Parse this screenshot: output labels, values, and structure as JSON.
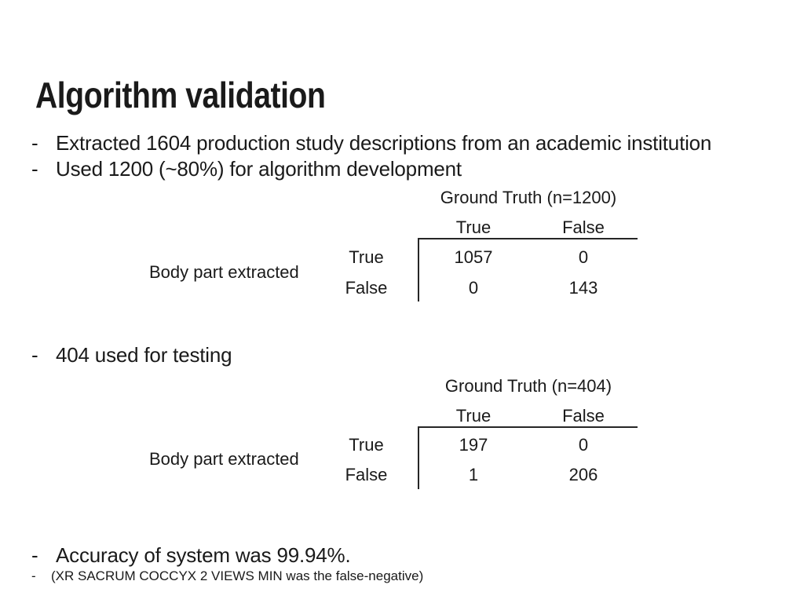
{
  "slide": {
    "title": "Algorithm validation",
    "bullet_marker": "-",
    "bullets": [
      {
        "text": "Extracted 1604 production study descriptions from an academic institution"
      },
      {
        "text": "Used 1200 (~80%) for algorithm development"
      },
      {
        "text": "404 used for testing"
      },
      {
        "text": "Accuracy of system was 99.94%."
      },
      {
        "text": "(XR SACRUM COCCYX 2 VIEWS MIN was the false-negative)"
      }
    ],
    "colors": {
      "text": "#1a1a1a",
      "rule_lines": "#262626",
      "background": "#ffffff"
    }
  },
  "tables": [
    {
      "header": "Ground Truth (n=1200)",
      "col_headers": [
        "True",
        "False"
      ],
      "row_group_label": "Body part extracted",
      "rows": [
        {
          "label": "True",
          "values": [
            "1057",
            "0"
          ]
        },
        {
          "label": "False",
          "values": [
            "0",
            "143"
          ]
        }
      ]
    },
    {
      "header": "Ground Truth (n=404)",
      "col_headers": [
        "True",
        "False"
      ],
      "row_group_label": "Body part extracted",
      "rows": [
        {
          "label": "True",
          "values": [
            "197",
            "0"
          ]
        },
        {
          "label": "False",
          "values": [
            "1",
            "206"
          ]
        }
      ]
    }
  ]
}
